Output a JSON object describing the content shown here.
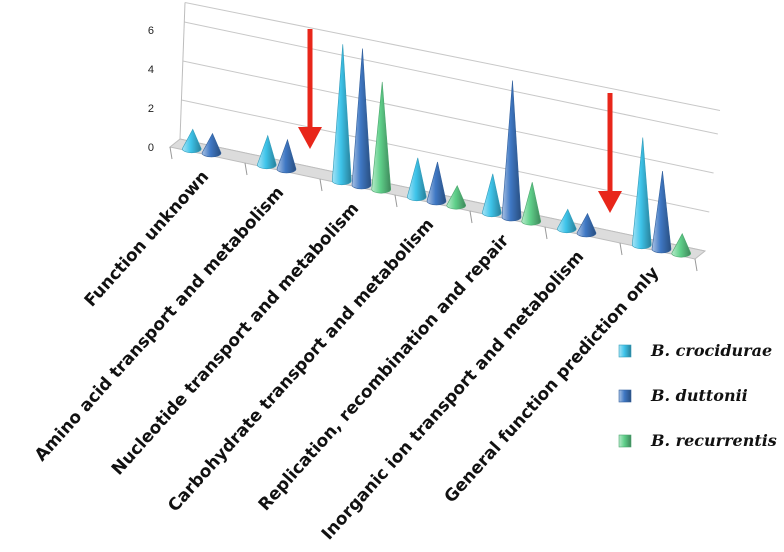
{
  "chart_data": {
    "type": "bar",
    "shape": "cone",
    "projection": "3d",
    "title": "",
    "xlabel": "",
    "ylabel": "",
    "ylim": [
      0,
      7
    ],
    "yticks": [
      "0",
      "2",
      "4",
      "6"
    ],
    "grid": true,
    "legend_position": "bottom-right",
    "categories": [
      "Function unknown",
      "Amino acid transport and metabolism",
      "Nucleotide transport and metabolism",
      "Carbohydrate transport and metabolism",
      "Replication, recombination and repair",
      "Inorganic ion transport and metabolism",
      "General function prediction only"
    ],
    "series": [
      {
        "name": "B. crocidurae",
        "color": "#3ec4ea",
        "values": [
          1,
          1.5,
          7,
          2,
          2,
          1,
          5.5
        ]
      },
      {
        "name": "B. duttonii",
        "color": "#3f78c4",
        "values": [
          1,
          1.5,
          7,
          2,
          7,
          1,
          4
        ]
      },
      {
        "name": "B. recurrentis",
        "color": "#5fd08a",
        "values": [
          0,
          0,
          5.5,
          1,
          2,
          0,
          1
        ]
      }
    ],
    "annotations": [
      {
        "type": "arrow",
        "color": "#e8261a",
        "direction": "down",
        "category": "Nucleotide transport and metabolism"
      },
      {
        "type": "arrow",
        "color": "#e8261a",
        "direction": "down",
        "category": "General function prediction only"
      }
    ]
  }
}
